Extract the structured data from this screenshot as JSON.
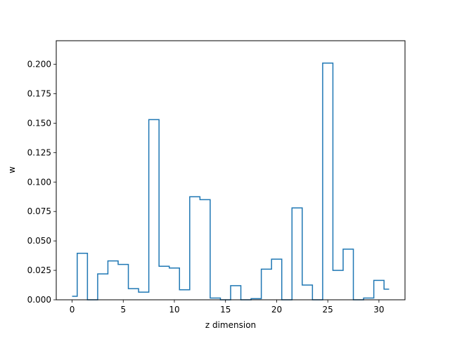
{
  "chart_data": {
    "type": "line",
    "drawstyle": "steps-mid",
    "title": "",
    "xlabel": "z dimension",
    "ylabel": "w",
    "xlim": [
      -1.55,
      32.55
    ],
    "ylim": [
      0,
      0.22
    ],
    "xticks": [
      0,
      5,
      10,
      15,
      20,
      25,
      30
    ],
    "xtick_labels": [
      "0",
      "5",
      "10",
      "15",
      "20",
      "25",
      "30"
    ],
    "yticks": [
      0,
      0.025,
      0.05,
      0.075,
      0.1,
      0.125,
      0.15,
      0.175,
      0.2
    ],
    "ytick_labels": [
      "0.000",
      "0.025",
      "0.050",
      "0.075",
      "0.100",
      "0.125",
      "0.150",
      "0.175",
      "0.200"
    ],
    "grid": false,
    "legend": "none",
    "line_color": "#1f77b4",
    "series": [
      {
        "x": [
          0,
          1,
          2,
          3,
          4,
          5,
          6,
          7,
          8,
          9,
          10,
          11,
          12,
          13,
          14,
          15,
          16,
          17,
          18,
          19,
          20,
          21,
          22,
          23,
          24,
          25,
          26,
          27,
          28,
          29,
          30,
          31
        ],
        "values": [
          0.003,
          0.0395,
          0.0,
          0.022,
          0.033,
          0.03,
          0.0095,
          0.0065,
          0.153,
          0.0285,
          0.027,
          0.0085,
          0.0875,
          0.085,
          0.0015,
          0.0,
          0.012,
          0.0,
          0.001,
          0.026,
          0.0345,
          0.0,
          0.078,
          0.0125,
          0.0,
          0.201,
          0.025,
          0.043,
          0.0,
          0.0015,
          0.0165,
          0.009
        ]
      }
    ]
  }
}
